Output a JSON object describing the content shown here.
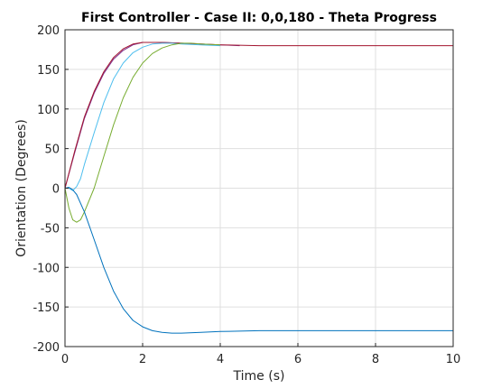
{
  "chart_data": {
    "type": "line",
    "title": "First Controller - Case II: 0,0,180 - Theta Progress",
    "xlabel": "Time (s)",
    "ylabel": "Orientation (Degrees)",
    "xlim": [
      0,
      10
    ],
    "ylim": [
      -200,
      200
    ],
    "xticks": [
      0,
      2,
      4,
      6,
      8,
      10
    ],
    "yticks": [
      -200,
      -150,
      -100,
      -50,
      0,
      50,
      100,
      150,
      200
    ],
    "grid": true,
    "legend": "none",
    "series": [
      {
        "color": "#7e2f8e",
        "x": [
          0,
          0.25,
          0.5,
          0.75,
          1.0,
          1.25,
          1.5,
          1.75,
          2.0,
          2.5,
          3.0,
          3.5,
          4.0,
          4.5
        ],
        "y": [
          0,
          45,
          88,
          120,
          145,
          163,
          174,
          181,
          184,
          184,
          183,
          182,
          181,
          180
        ]
      },
      {
        "color": "#a2142f",
        "x": [
          0,
          0.25,
          0.5,
          0.75,
          1.0,
          1.25,
          1.5,
          1.75,
          2.0,
          2.5,
          3.0,
          3.5,
          4.0,
          5.0,
          6.0,
          7.0,
          8.0,
          9.0,
          10.0
        ],
        "y": [
          0,
          47,
          90,
          122,
          147,
          165,
          176,
          182,
          184,
          184,
          183,
          182,
          181,
          180,
          180,
          180,
          180,
          180,
          180
        ]
      },
      {
        "color": "#4dbeee",
        "x": [
          0,
          0.1,
          0.2,
          0.3,
          0.4,
          0.5,
          0.75,
          1.0,
          1.25,
          1.5,
          1.75,
          2.0,
          2.25,
          2.5,
          2.75,
          3.0,
          3.5,
          4.0
        ],
        "y": [
          0,
          0,
          -3,
          2,
          12,
          30,
          70,
          108,
          138,
          158,
          171,
          178,
          182,
          183,
          183,
          182,
          181,
          180
        ]
      },
      {
        "color": "#77ac30",
        "x": [
          0,
          0.1,
          0.2,
          0.3,
          0.4,
          0.5,
          0.75,
          1.0,
          1.25,
          1.5,
          1.75,
          2.0,
          2.25,
          2.5,
          2.75,
          3.0,
          3.25,
          3.5,
          4.0
        ],
        "y": [
          0,
          -25,
          -40,
          -43,
          -40,
          -30,
          0,
          40,
          80,
          114,
          140,
          158,
          170,
          177,
          181,
          183,
          183,
          182,
          181
        ]
      },
      {
        "color": "#0072bd",
        "x": [
          0,
          0.1,
          0.2,
          0.3,
          0.5,
          0.75,
          1.0,
          1.25,
          1.5,
          1.75,
          2.0,
          2.25,
          2.5,
          2.75,
          3.0,
          3.5,
          4.0,
          5.0,
          6.0,
          7.0,
          8.0,
          9.0,
          10.0
        ],
        "y": [
          0,
          1,
          -2,
          -8,
          -30,
          -65,
          -100,
          -130,
          -152,
          -167,
          -175,
          -180,
          -182,
          -183,
          -183,
          -182,
          -181,
          -180,
          -180,
          -180,
          -180,
          -180,
          -180
        ]
      }
    ]
  }
}
